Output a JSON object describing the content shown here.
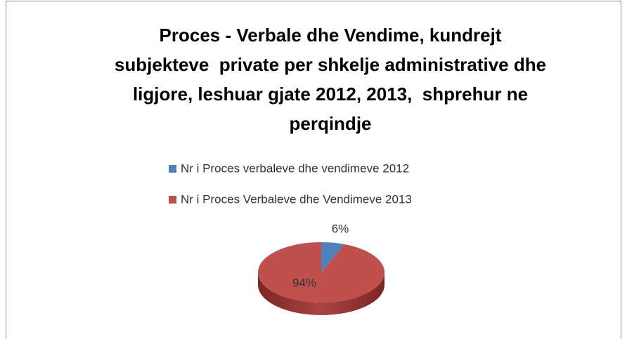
{
  "chart_data": {
    "type": "pie",
    "title": [
      "Proces - Verbale dhe Vendime, kundrejt",
      "subjekteve  private per shkelje administrative dhe",
      "ligjore, leshuar gjate 2012, 2013,  shprehur ne",
      "perqindje"
    ],
    "categories": [
      "Nr i Proces verbaleve dhe vendimeve 2012",
      "Nr i Proces Verbaleve dhe Vendimeve 2013"
    ],
    "values": [
      6,
      94
    ],
    "value_labels": [
      "6%",
      "94%"
    ],
    "colors": [
      "#4f81bd",
      "#c0504d"
    ],
    "legend": "top"
  }
}
